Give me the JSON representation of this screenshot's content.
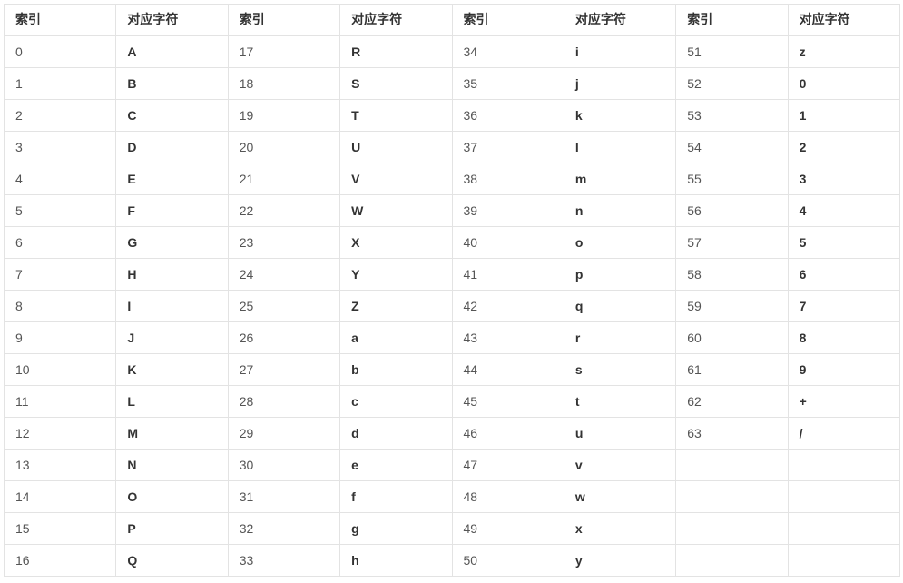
{
  "table": {
    "headers": [
      "索引",
      "对应字符",
      "索引",
      "对应字符",
      "索引",
      "对应字符",
      "索引",
      "对应字符"
    ],
    "rows": [
      [
        "0",
        "A",
        "17",
        "R",
        "34",
        "i",
        "51",
        "z"
      ],
      [
        "1",
        "B",
        "18",
        "S",
        "35",
        "j",
        "52",
        "0"
      ],
      [
        "2",
        "C",
        "19",
        "T",
        "36",
        "k",
        "53",
        "1"
      ],
      [
        "3",
        "D",
        "20",
        "U",
        "37",
        "l",
        "54",
        "2"
      ],
      [
        "4",
        "E",
        "21",
        "V",
        "38",
        "m",
        "55",
        "3"
      ],
      [
        "5",
        "F",
        "22",
        "W",
        "39",
        "n",
        "56",
        "4"
      ],
      [
        "6",
        "G",
        "23",
        "X",
        "40",
        "o",
        "57",
        "5"
      ],
      [
        "7",
        "H",
        "24",
        "Y",
        "41",
        "p",
        "58",
        "6"
      ],
      [
        "8",
        "I",
        "25",
        "Z",
        "42",
        "q",
        "59",
        "7"
      ],
      [
        "9",
        "J",
        "26",
        "a",
        "43",
        "r",
        "60",
        "8"
      ],
      [
        "10",
        "K",
        "27",
        "b",
        "44",
        "s",
        "61",
        "9"
      ],
      [
        "11",
        "L",
        "28",
        "c",
        "45",
        "t",
        "62",
        "+"
      ],
      [
        "12",
        "M",
        "29",
        "d",
        "46",
        "u",
        "63",
        "/"
      ],
      [
        "13",
        "N",
        "30",
        "e",
        "47",
        "v",
        "",
        ""
      ],
      [
        "14",
        "O",
        "31",
        "f",
        "48",
        "w",
        "",
        ""
      ],
      [
        "15",
        "P",
        "32",
        "g",
        "49",
        "x",
        "",
        ""
      ],
      [
        "16",
        "Q",
        "33",
        "h",
        "50",
        "y",
        "",
        ""
      ]
    ]
  },
  "colors": {
    "border": "#e3e3e3",
    "text": "#333333",
    "index_text": "#555555",
    "background": "#ffffff"
  }
}
